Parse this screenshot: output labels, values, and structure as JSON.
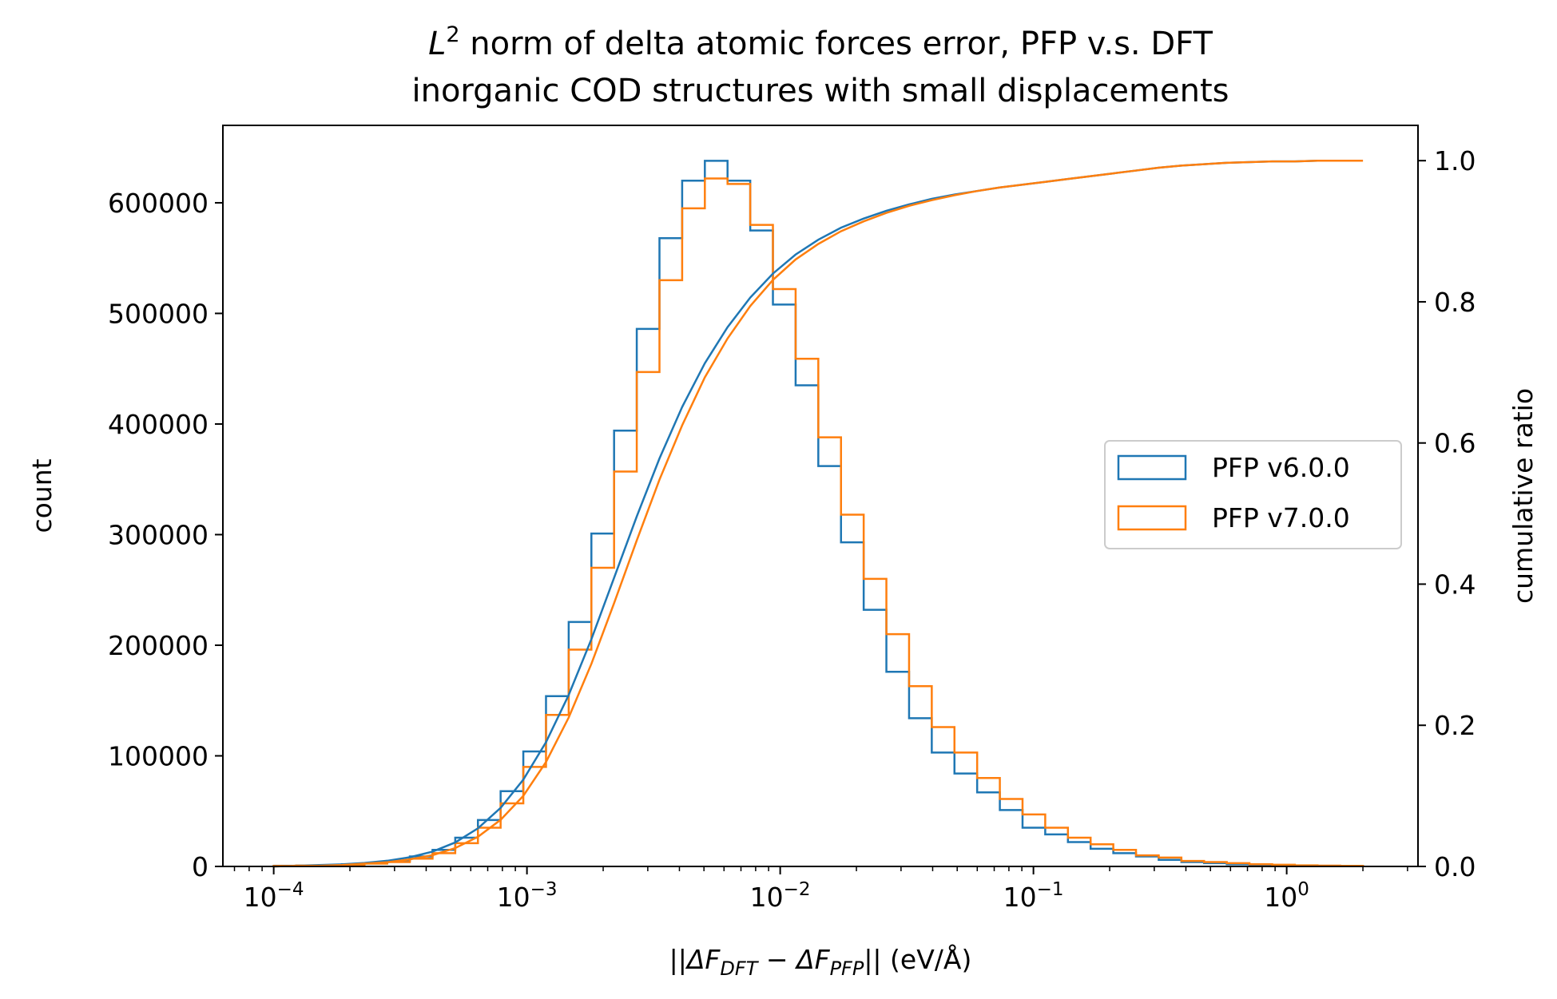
{
  "chart_data": {
    "type": "histogram",
    "title": {
      "line1_symbol": "L",
      "line1_superscript": "2",
      "line1_rest": " norm of delta atomic forces error, PFP v.s. DFT",
      "line2": "inorganic COD structures with small displacements"
    },
    "xlabel": {
      "open": "||ΔF",
      "sub1": "DFT",
      "mid": " − ΔF",
      "sub2": "PFP",
      "close": "|| (eV/Å)"
    },
    "ylabel": "count",
    "y2label": "cumulative ratio",
    "xscale": "log",
    "xlim": [
      6.3e-05,
      3.3
    ],
    "ylim": [
      0,
      670000
    ],
    "y2lim": [
      0,
      1.05
    ],
    "xticks": [
      {
        "value": 0.0001,
        "base": "10",
        "exp": "−4"
      },
      {
        "value": 0.001,
        "base": "10",
        "exp": "−3"
      },
      {
        "value": 0.01,
        "base": "10",
        "exp": "−2"
      },
      {
        "value": 0.1,
        "base": "10",
        "exp": "−1"
      },
      {
        "value": 1,
        "base": "10",
        "exp": "0"
      }
    ],
    "yticks": [
      {
        "value": 0,
        "label": "0"
      },
      {
        "value": 100000,
        "label": "100000"
      },
      {
        "value": 200000,
        "label": "200000"
      },
      {
        "value": 300000,
        "label": "300000"
      },
      {
        "value": 400000,
        "label": "400000"
      },
      {
        "value": 500000,
        "label": "500000"
      },
      {
        "value": 600000,
        "label": "600000"
      }
    ],
    "y2ticks": [
      {
        "value": 0.0,
        "label": "0.0"
      },
      {
        "value": 0.2,
        "label": "0.2"
      },
      {
        "value": 0.4,
        "label": "0.4"
      },
      {
        "value": 0.6,
        "label": "0.6"
      },
      {
        "value": 0.8,
        "label": "0.8"
      },
      {
        "value": 1.0,
        "label": "1.0"
      }
    ],
    "bins": {
      "start": 0.0001,
      "stop": 2.0,
      "count": 48
    },
    "series": [
      {
        "name": "PFP v6.0.0",
        "color": "#1f77b4",
        "counts": [
          600,
          900,
          1300,
          2000,
          3000,
          5000,
          9000,
          15000,
          26000,
          42000,
          68000,
          104000,
          154000,
          221000,
          301000,
          394000,
          486000,
          568000,
          620000,
          638000,
          620000,
          575000,
          508000,
          435000,
          362000,
          293000,
          232000,
          176000,
          134000,
          103000,
          84000,
          67000,
          51000,
          35000,
          29000,
          22000,
          16000,
          12000,
          9000,
          6000,
          4000,
          3000,
          2000,
          1500,
          1200,
          900,
          600,
          400
        ],
        "cumulative": [
          0.0,
          0.001,
          0.002,
          0.003,
          0.005,
          0.008,
          0.013,
          0.021,
          0.034,
          0.054,
          0.083,
          0.123,
          0.176,
          0.243,
          0.322,
          0.409,
          0.496,
          0.578,
          0.651,
          0.713,
          0.764,
          0.806,
          0.84,
          0.867,
          0.888,
          0.905,
          0.918,
          0.929,
          0.938,
          0.946,
          0.952,
          0.957,
          0.962,
          0.966,
          0.97,
          0.974,
          0.978,
          0.982,
          0.986,
          0.99,
          0.993,
          0.995,
          0.997,
          0.998,
          0.999,
          0.999,
          1.0,
          1.0,
          1.0
        ]
      },
      {
        "name": "PFP v7.0.0",
        "color": "#ff7f0e",
        "counts": [
          500,
          700,
          1000,
          1600,
          2500,
          4000,
          7000,
          12000,
          21000,
          35000,
          57000,
          90000,
          137000,
          196000,
          270000,
          357000,
          447000,
          530000,
          595000,
          622000,
          617000,
          580000,
          522000,
          459000,
          388000,
          318000,
          260000,
          210000,
          163000,
          126000,
          103000,
          80000,
          61000,
          47000,
          35000,
          26000,
          20000,
          15000,
          10000,
          8000,
          5000,
          4000,
          3000,
          2000,
          1500,
          1000,
          700,
          500
        ],
        "cumulative": [
          0.0,
          0.001,
          0.001,
          0.002,
          0.004,
          0.006,
          0.01,
          0.016,
          0.026,
          0.042,
          0.066,
          0.1,
          0.148,
          0.211,
          0.287,
          0.373,
          0.462,
          0.548,
          0.625,
          0.693,
          0.748,
          0.794,
          0.831,
          0.86,
          0.882,
          0.9,
          0.914,
          0.926,
          0.936,
          0.944,
          0.951,
          0.957,
          0.962,
          0.966,
          0.97,
          0.974,
          0.978,
          0.982,
          0.986,
          0.99,
          0.993,
          0.995,
          0.997,
          0.998,
          0.999,
          0.999,
          1.0,
          1.0,
          1.0
        ]
      }
    ],
    "legend": {
      "location": "center-right",
      "entries": [
        "PFP v6.0.0",
        "PFP v7.0.0"
      ]
    },
    "grid": false
  }
}
